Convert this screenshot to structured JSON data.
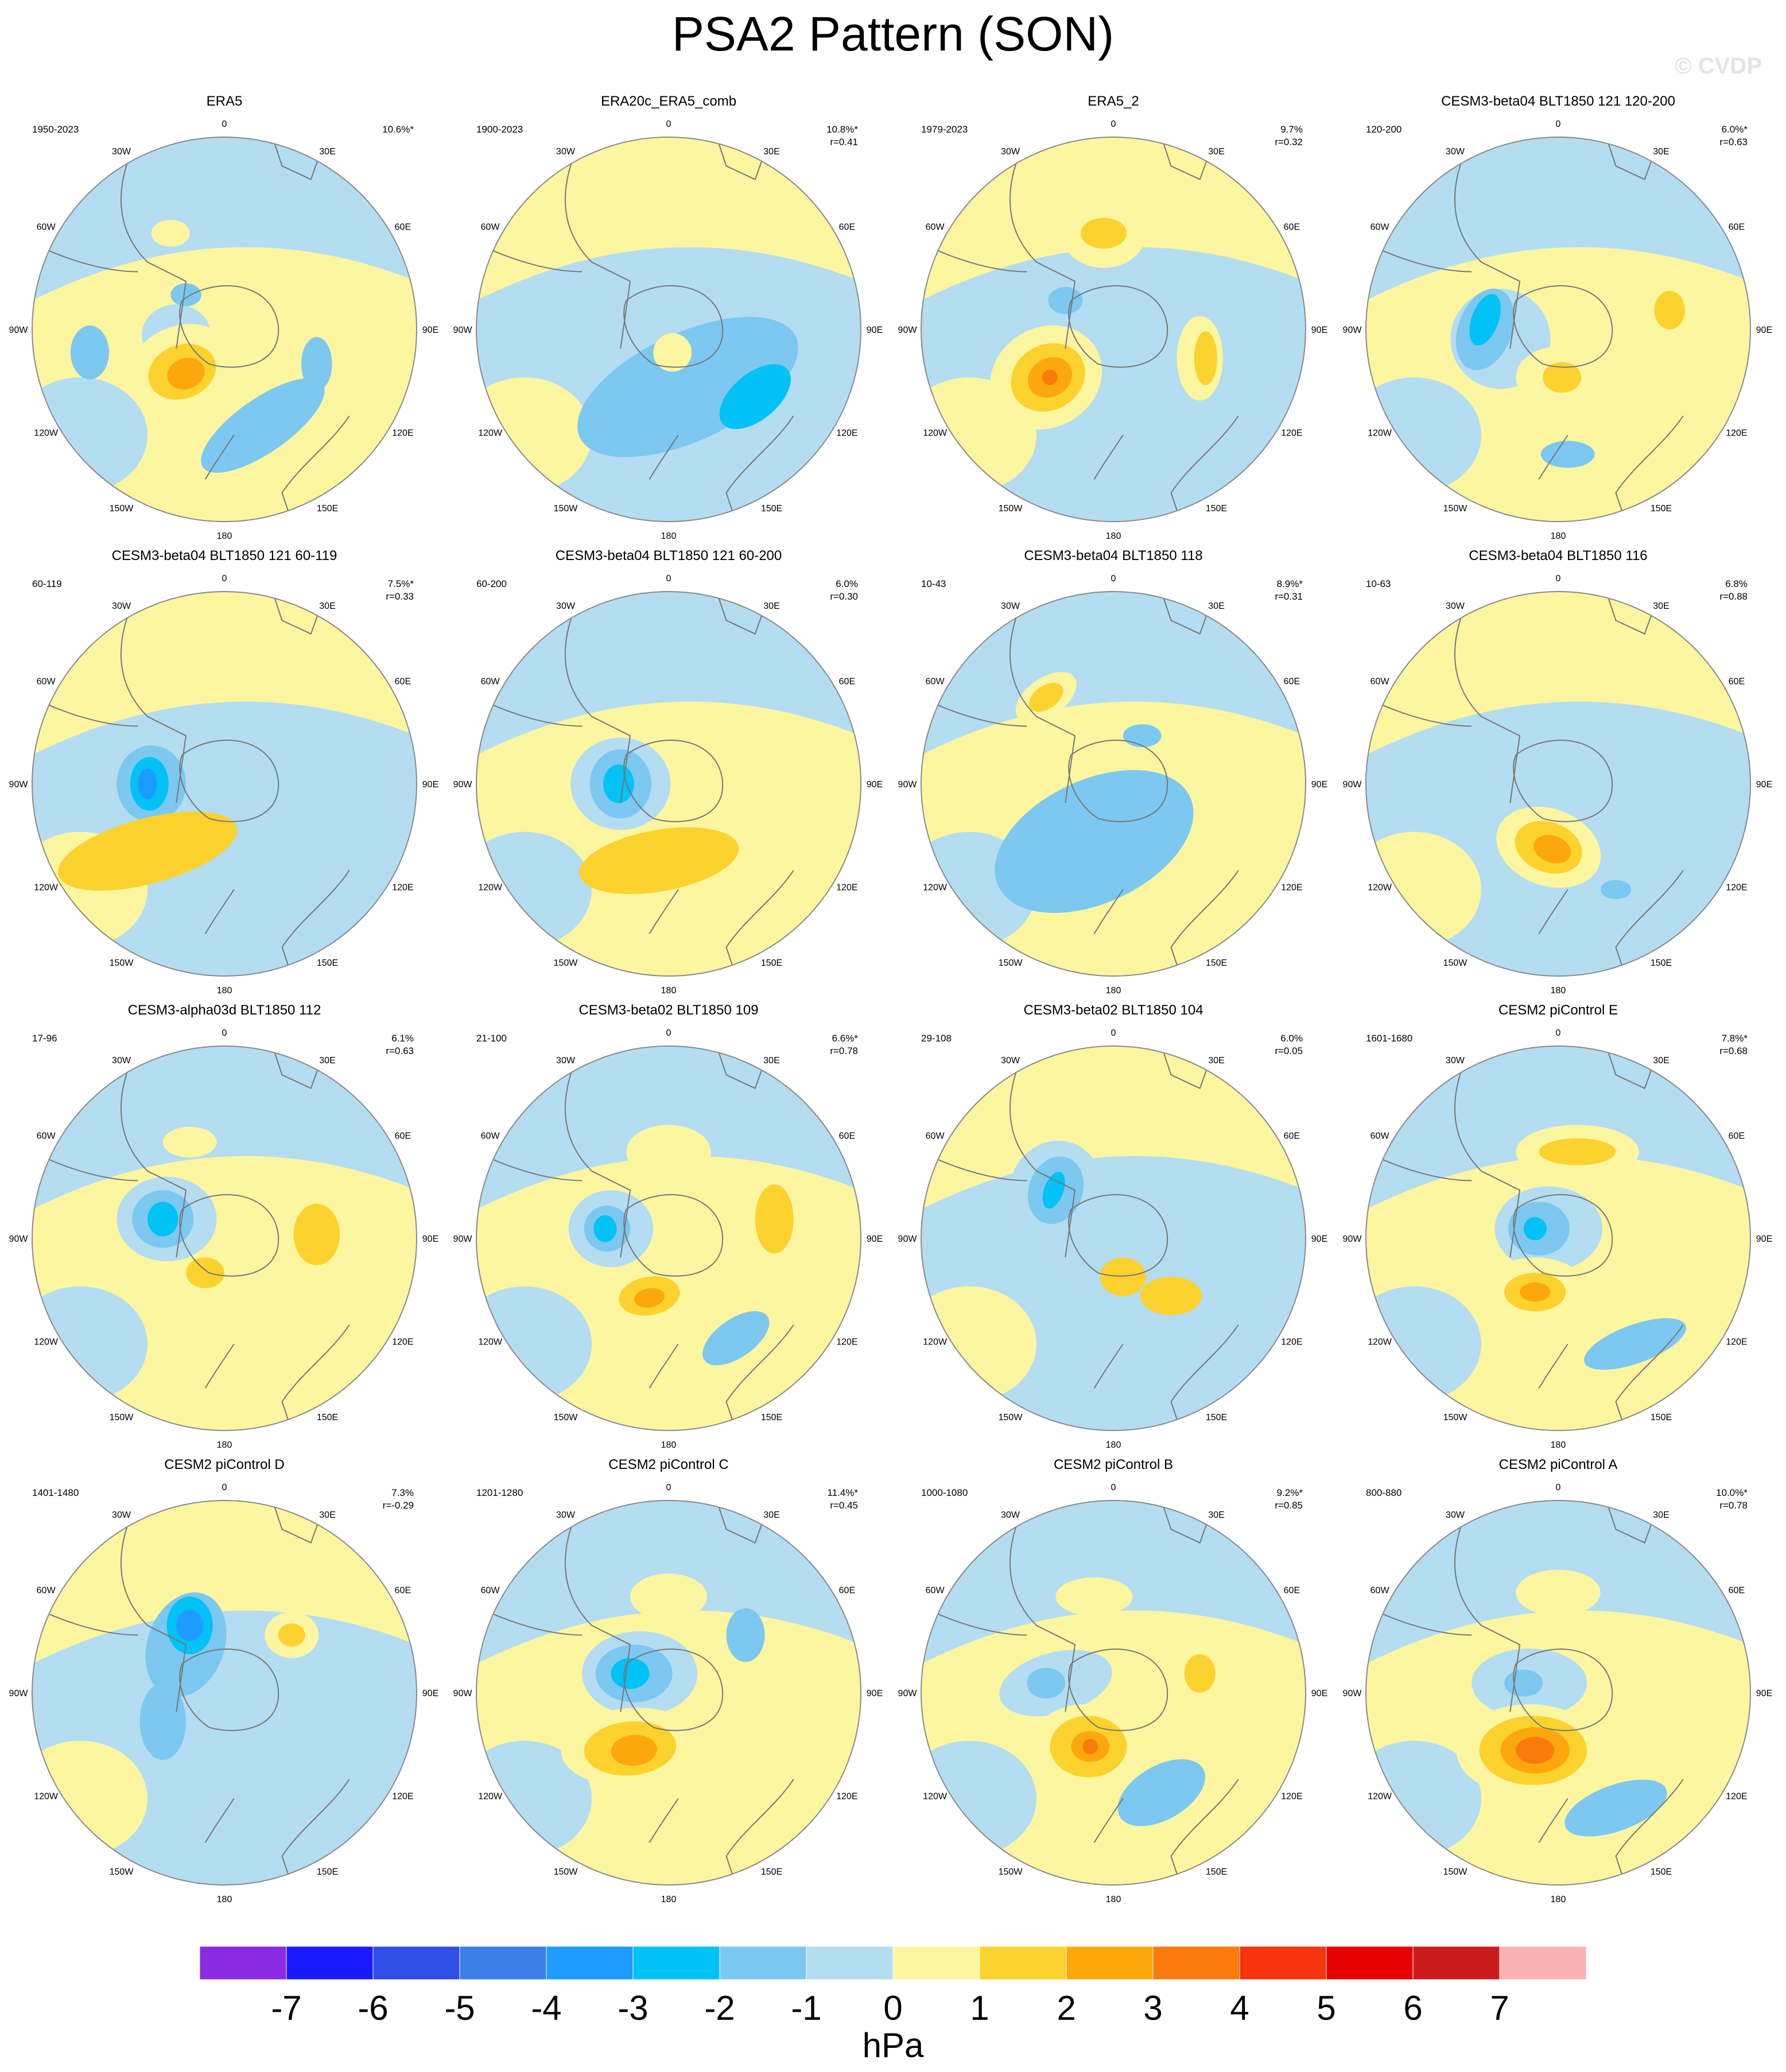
{
  "title": "PSA2 Pattern (SON)",
  "watermark": "© CVDP",
  "lon_labels": [
    "0",
    "30E",
    "60E",
    "90E",
    "120E",
    "150E",
    "180",
    "150W",
    "120W",
    "90W",
    "60W",
    "30W"
  ],
  "panels": [
    {
      "title": "ERA5",
      "years": "1950-2023",
      "pct": "10.6%*",
      "r": ""
    },
    {
      "title": "ERA20c_ERA5_comb",
      "years": "1900-2023",
      "pct": "10.8%*",
      "r": "r=0.41"
    },
    {
      "title": "ERA5_2",
      "years": "1979-2023",
      "pct": "9.7%",
      "r": "r=0.32"
    },
    {
      "title": "CESM3-beta04 BLT1850 121 120-200",
      "years": "120-200",
      "pct": "6.0%*",
      "r": "r=0.63"
    },
    {
      "title": "CESM3-beta04 BLT1850 121 60-119",
      "years": "60-119",
      "pct": "7.5%*",
      "r": "r=0.33"
    },
    {
      "title": "CESM3-beta04 BLT1850 121 60-200",
      "years": "60-200",
      "pct": "6.0%",
      "r": "r=0.30"
    },
    {
      "title": "CESM3-beta04 BLT1850 118",
      "years": "10-43",
      "pct": "8.9%*",
      "r": "r=0.31"
    },
    {
      "title": "CESM3-beta04 BLT1850 116",
      "years": "10-63",
      "pct": "6.8%",
      "r": "r=0.88"
    },
    {
      "title": "CESM3-alpha03d BLT1850 112",
      "years": "17-96",
      "pct": "6.1%",
      "r": "r=0.63"
    },
    {
      "title": "CESM3-beta02 BLT1850 109",
      "years": "21-100",
      "pct": "6.6%*",
      "r": "r=0.78"
    },
    {
      "title": "CESM3-beta02 BLT1850 104",
      "years": "29-108",
      "pct": "6.0%",
      "r": "r=0.05"
    },
    {
      "title": "CESM2 piControl E",
      "years": "1601-1680",
      "pct": "7.8%*",
      "r": "r=0.68"
    },
    {
      "title": "CESM2 piControl D",
      "years": "1401-1480",
      "pct": "7.3%",
      "r": "r=-0.29"
    },
    {
      "title": "CESM2 piControl C",
      "years": "1201-1280",
      "pct": "11.4%*",
      "r": "r=0.45"
    },
    {
      "title": "CESM2 piControl B",
      "years": "1000-1080",
      "pct": "9.2%*",
      "r": "r=0.85"
    },
    {
      "title": "CESM2 piControl A",
      "years": "800-880",
      "pct": "10.0%*",
      "r": "r=0.78"
    }
  ],
  "colorbar": {
    "unit": "hPa",
    "labels": [
      "-7",
      "-6",
      "-5",
      "-4",
      "-3",
      "-2",
      "-1",
      "0",
      "1",
      "2",
      "3",
      "4",
      "5",
      "6",
      "7"
    ],
    "colors": [
      "#8a2be2",
      "#1a1aff",
      "#2f4ee6",
      "#3a7fe8",
      "#1e9bff",
      "#00c2f5",
      "#7cc8f0",
      "#b4ddf2",
      "#fdf6a0",
      "#fcd22e",
      "#fca80c",
      "#fb7a0c",
      "#f5330c",
      "#e60000",
      "#cc1b1b",
      "#f9b3b3"
    ]
  }
}
